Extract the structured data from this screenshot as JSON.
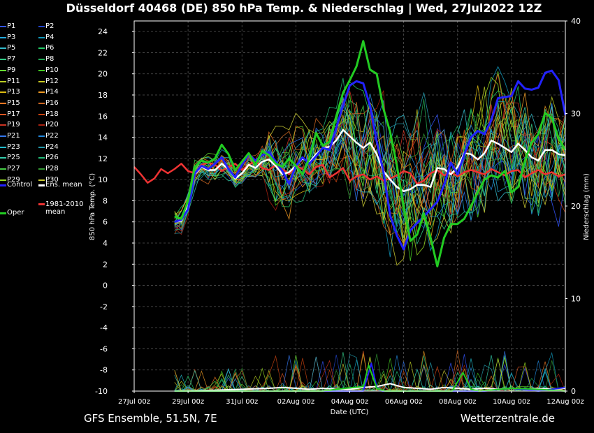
{
  "title": "Düsseldorf 40468 (DE)  850 hPa Temp. & Niederschlag | Wed, 27Jul2022 12Z",
  "footer_left": "GFS Ensemble, 51.5N, 7E",
  "footer_right": "Wetterzentrale.de",
  "legend": {
    "members": [
      {
        "label": "P1",
        "color": "#3355ff"
      },
      {
        "label": "P2",
        "color": "#2244cc"
      },
      {
        "label": "P3",
        "color": "#22aadd"
      },
      {
        "label": "P4",
        "color": "#1199bb"
      },
      {
        "label": "P5",
        "color": "#33bbcc"
      },
      {
        "label": "P6",
        "color": "#22cc66"
      },
      {
        "label": "P7",
        "color": "#33cc88"
      },
      {
        "label": "P8",
        "color": "#22aa55"
      },
      {
        "label": "P9",
        "color": "#66dd33"
      },
      {
        "label": "P10",
        "color": "#44cc22"
      },
      {
        "label": "P11",
        "color": "#bbcc22"
      },
      {
        "label": "P12",
        "color": "#cccc22"
      },
      {
        "label": "P13",
        "color": "#ddbb11"
      },
      {
        "label": "P14",
        "color": "#ee9922"
      },
      {
        "label": "P15",
        "color": "#ee7722"
      },
      {
        "label": "P16",
        "color": "#cc6622"
      },
      {
        "label": "P17",
        "color": "#dd5522"
      },
      {
        "label": "P18",
        "color": "#cc4411"
      },
      {
        "label": "P19",
        "color": "#cc3322"
      },
      {
        "label": "P20",
        "color": "#aa2211"
      },
      {
        "label": "P21",
        "color": "#3377ee"
      },
      {
        "label": "P22",
        "color": "#2288dd"
      },
      {
        "label": "P23",
        "color": "#22bbcc"
      },
      {
        "label": "P24",
        "color": "#2299aa"
      },
      {
        "label": "P25",
        "color": "#33ccaa"
      },
      {
        "label": "P26",
        "color": "#22bb77"
      },
      {
        "label": "P27",
        "color": "#44cc44"
      },
      {
        "label": "P28",
        "color": "#339933"
      },
      {
        "label": "P29",
        "color": "#99dd22"
      },
      {
        "label": "P30",
        "color": "#cccc33"
      }
    ],
    "control": {
      "label": "Control",
      "color": "#2222ff"
    },
    "ens_mean": {
      "label": "Ens. mean",
      "color": "#ffffff"
    },
    "oper": {
      "label": "Oper",
      "color": "#22cc22"
    },
    "clim_line1": "1981-2010",
    "clim_line2": "mean",
    "clim_color": "#ee3333"
  },
  "chart_data": {
    "type": "line",
    "xlabel": "Date (UTC)",
    "ylabel": "850 hPa Temp. (°C)",
    "ylabel_right": "Niederschlag (mm)",
    "x_ticks": [
      "27Jul 00z",
      "29Jul 00z",
      "31Jul 00z",
      "02Aug 00z",
      "04Aug 00z",
      "06Aug 00z",
      "08Aug 00z",
      "10Aug 00z",
      "12Aug 00z"
    ],
    "xlim_days": [
      0,
      16
    ],
    "ylim": [
      -10,
      25
    ],
    "yticks": [
      -10,
      -8,
      -6,
      -4,
      -2,
      0,
      2,
      4,
      6,
      8,
      10,
      12,
      14,
      16,
      18,
      20,
      22,
      24
    ],
    "ylim_right": [
      0,
      40
    ],
    "yticks_right": [
      0,
      10,
      20,
      30,
      40
    ],
    "grid": true,
    "series": [
      {
        "name": "Oper",
        "color": "#22cc22",
        "width": 3,
        "x": [
          1.5,
          1.75,
          2,
          2.25,
          2.5,
          2.75,
          3,
          3.25,
          3.5,
          3.75,
          4,
          4.25,
          4.5,
          4.75,
          5,
          5.25,
          5.5,
          5.75,
          6,
          6.25,
          6.5,
          6.75,
          7,
          7.25,
          7.5,
          7.75,
          8,
          8.25,
          8.5,
          8.75,
          9,
          9.25,
          9.5,
          9.75,
          10,
          10.25,
          10.5,
          10.75,
          11,
          11.25,
          11.5,
          11.75,
          12,
          12.25,
          12.5,
          12.75,
          13,
          13.25,
          13.5,
          13.75,
          14,
          14.25,
          14.5,
          14.75,
          15,
          15.25,
          15.5,
          15.75,
          16
        ],
        "y": [
          6.5,
          6.3,
          8.0,
          11.2,
          11.8,
          11.6,
          12.0,
          13.3,
          12.4,
          10.9,
          11.7,
          12.5,
          11.4,
          12.7,
          12.3,
          11.5,
          11.2,
          12.0,
          11.3,
          10.5,
          12.0,
          14.4,
          13.2,
          13.6,
          16.0,
          18.2,
          19.4,
          20.7,
          23.1,
          20.4,
          20.0,
          16.7,
          14.5,
          11.3,
          7.5,
          4.2,
          4.8,
          6.8,
          4.5,
          1.8,
          4.5,
          5.8,
          5.8,
          6.3,
          7.5,
          8.8,
          10.0,
          10.4,
          10.2,
          10.8,
          8.8,
          9.3,
          11.8,
          13.5,
          14.3,
          16.3,
          15.8,
          13.9,
          12.8
        ]
      },
      {
        "name": "Control",
        "color": "#2222ff",
        "width": 3,
        "x": [
          1.5,
          1.75,
          2,
          2.25,
          2.5,
          2.75,
          3,
          3.25,
          3.5,
          3.75,
          4,
          4.25,
          4.5,
          4.75,
          5,
          5.25,
          5.5,
          5.75,
          6,
          6.25,
          6.5,
          6.75,
          7,
          7.25,
          7.5,
          7.75,
          8,
          8.25,
          8.5,
          8.75,
          9,
          9.25,
          9.5,
          9.75,
          10,
          10.25,
          10.5,
          10.75,
          11,
          11.25,
          11.5,
          11.75,
          12,
          12.25,
          12.5,
          12.75,
          13,
          13.25,
          13.5,
          13.75,
          14,
          14.25,
          14.5,
          14.75,
          15,
          15.25,
          15.5,
          15.75,
          16
        ],
        "y": [
          6.0,
          6.2,
          7.2,
          10.6,
          11.3,
          11.0,
          11.5,
          12.1,
          11.0,
          10.2,
          11.4,
          12.4,
          11.8,
          12.3,
          12.6,
          11.7,
          10.8,
          9.6,
          11.3,
          12.1,
          11.5,
          12.2,
          13.0,
          12.8,
          14.9,
          17.0,
          18.9,
          19.3,
          19.1,
          17.0,
          13.6,
          10.7,
          6.6,
          4.7,
          3.4,
          5.2,
          5.9,
          6.5,
          7.2,
          7.9,
          9.5,
          11.6,
          10.5,
          12.4,
          14.0,
          14.6,
          14.3,
          15.6,
          17.7,
          17.8,
          17.9,
          19.3,
          18.6,
          18.5,
          18.7,
          20.1,
          20.3,
          19.4,
          16.1
        ]
      },
      {
        "name": "Ens. mean",
        "color": "#ffffff",
        "width": 2.5,
        "x": [
          1.5,
          1.75,
          2,
          2.25,
          2.5,
          2.75,
          3,
          3.25,
          3.5,
          3.75,
          4,
          4.25,
          4.5,
          4.75,
          5,
          5.25,
          5.5,
          5.75,
          6,
          6.25,
          6.5,
          6.75,
          7,
          7.25,
          7.5,
          7.75,
          8,
          8.25,
          8.5,
          8.75,
          9,
          9.25,
          9.5,
          9.75,
          10,
          10.25,
          10.5,
          10.75,
          11,
          11.25,
          11.5,
          11.75,
          12,
          12.25,
          12.5,
          12.75,
          13,
          13.25,
          13.5,
          13.75,
          14,
          14.25,
          14.5,
          14.75,
          15,
          15.25,
          15.5,
          15.75,
          16
        ],
        "y": [
          6.0,
          6.1,
          7.5,
          10.5,
          11.2,
          10.9,
          10.9,
          11.5,
          11.0,
          10.1,
          10.6,
          11.4,
          11.1,
          11.7,
          11.9,
          11.3,
          10.5,
          10.7,
          11.3,
          12.0,
          11.6,
          12.4,
          13.0,
          13.1,
          13.7,
          14.7,
          14.1,
          13.5,
          13.0,
          13.5,
          12.4,
          10.8,
          10.0,
          9.3,
          8.9,
          9.1,
          9.5,
          9.5,
          9.3,
          11.1,
          11.0,
          10.5,
          11.2,
          12.5,
          12.4,
          11.9,
          12.5,
          13.7,
          13.4,
          13.0,
          12.6,
          13.4,
          12.8,
          12.1,
          11.8,
          12.8,
          12.8,
          12.4,
          12.3
        ]
      },
      {
        "name": "1981-2010 mean",
        "color": "#ee3333",
        "width": 2.5,
        "x": [
          0,
          0.25,
          0.5,
          0.75,
          1,
          1.25,
          1.5,
          1.75,
          2,
          2.25,
          2.5,
          2.75,
          3,
          3.25,
          3.5,
          3.75,
          4,
          4.25,
          4.5,
          4.75,
          5,
          5.25,
          5.5,
          5.75,
          6,
          6.25,
          6.5,
          6.75,
          7,
          7.25,
          7.5,
          7.75,
          8,
          8.25,
          8.5,
          8.75,
          9,
          9.25,
          9.5,
          9.75,
          10,
          10.25,
          10.5,
          10.75,
          11,
          11.25,
          11.5,
          11.75,
          12,
          12.25,
          12.5,
          12.75,
          13,
          13.25,
          13.5,
          13.75,
          14,
          14.25,
          14.5,
          14.75,
          15,
          15.25,
          15.5,
          15.75,
          16
        ],
        "y": [
          11.2,
          10.5,
          9.7,
          10.1,
          11.0,
          10.6,
          11.0,
          11.5,
          10.8,
          10.6,
          11.4,
          11.6,
          11.4,
          10.8,
          11.2,
          11.5,
          10.9,
          11.4,
          11.8,
          11.1,
          10.9,
          11.4,
          11.0,
          10.5,
          11.3,
          11.0,
          10.5,
          11.2,
          11.4,
          10.2,
          10.6,
          11.1,
          9.9,
          10.3,
          10.5,
          10.0,
          10.3,
          9.9,
          10.1,
          10.4,
          10.8,
          10.6,
          9.6,
          9.9,
          10.6,
          10.9,
          10.4,
          10.7,
          10.3,
          10.7,
          10.9,
          10.7,
          10.5,
          11.0,
          10.7,
          10.4,
          10.8,
          10.9,
          10.2,
          10.6,
          10.9,
          10.5,
          10.7,
          10.3,
          10.5
        ]
      },
      {
        "name": "Oper precipitation (mm)",
        "color": "#22cc22",
        "width": 2,
        "axis": "right",
        "x": [
          1.5,
          7.0,
          7.5,
          8.5,
          8.7,
          9.0,
          9.3,
          9.6,
          10.0,
          11.0,
          11.8,
          12.2,
          12.5,
          12.8,
          14.0,
          15.0,
          16.0
        ],
        "y": [
          0,
          0,
          0.2,
          0.5,
          2.8,
          0.3,
          0,
          0,
          0,
          0,
          0,
          2.0,
          0.2,
          0,
          0.3,
          0.2,
          0
        ]
      },
      {
        "name": "Control precipitation (mm)",
        "color": "#2222ff",
        "width": 2,
        "axis": "right",
        "x": [
          1.5,
          7.0,
          8.5,
          8.8,
          9.0,
          9.2,
          9.5,
          10.0,
          12.0,
          13.0,
          14.0,
          15.0,
          16.0
        ],
        "y": [
          0,
          0,
          0,
          3.0,
          0.4,
          0,
          0,
          0,
          0,
          0,
          0.3,
          0,
          0.4
        ]
      },
      {
        "name": "Ens. mean precipitation (mm)",
        "color": "#ffffff",
        "width": 2,
        "axis": "right",
        "x": [
          1.5,
          3.0,
          4.0,
          5.0,
          5.5,
          6.0,
          6.5,
          7.0,
          7.5,
          8.0,
          8.5,
          9.0,
          9.5,
          10.0,
          10.5,
          11.0,
          11.5,
          12.0,
          12.5,
          13.0,
          13.5,
          14.0,
          14.5,
          15.0,
          15.5,
          16.0
        ],
        "y": [
          0,
          0.1,
          0.2,
          0.3,
          0.4,
          0.3,
          0.2,
          0.3,
          0.2,
          0.2,
          0.4,
          0.5,
          0.8,
          0.4,
          0.3,
          0.2,
          0.4,
          0.3,
          0.2,
          0.3,
          0.2,
          0.3,
          0.2,
          0.3,
          0.2,
          0.3
        ]
      }
    ]
  }
}
